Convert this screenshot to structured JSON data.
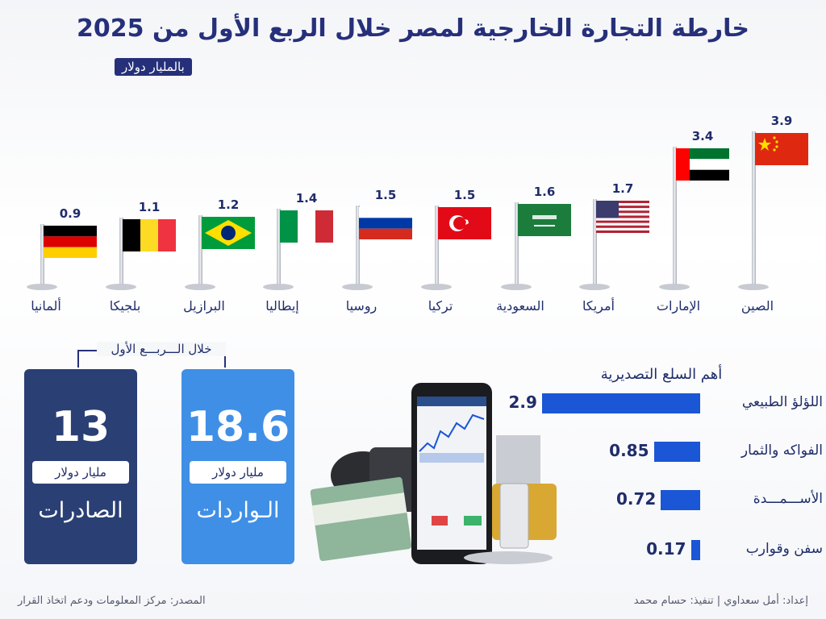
{
  "header": {
    "title": "خارطة التجارة الخارجية لمصر خلال الربع الأول من 2025",
    "unit": "بالمليار دولار"
  },
  "chart_data": [
    {
      "type": "bar",
      "title": "",
      "categories": [
        "الصين",
        "الإمارات",
        "أمريكا",
        "السعودية",
        "تركيا",
        "روسيا",
        "إيطاليا",
        "البرازيل",
        "بلجيكا",
        "ألمانيا"
      ],
      "values": [
        3.9,
        3.4,
        1.7,
        1.6,
        1.5,
        1.5,
        1.4,
        1.2,
        1.1,
        0.9
      ],
      "flags": [
        "china",
        "uae",
        "usa",
        "saudi",
        "turkey",
        "russia",
        "italy",
        "brazil",
        "belgium",
        "germany"
      ]
    },
    {
      "type": "bar",
      "title": "أهم السلع التصديرية",
      "categories": [
        "اللؤلؤ الطبيعي",
        "الفواكه والثمار",
        "الأســـمـــدة",
        "سفن وقوارب"
      ],
      "values": [
        2.9,
        0.85,
        0.72,
        0.17
      ],
      "value_labels": [
        "2.9",
        "0.85",
        "0.72",
        "0.17"
      ],
      "color": "#1a56d6"
    }
  ],
  "period_label": "خلال الـــربـــع الأول",
  "imports": {
    "value": "18.6",
    "unit": "مليار دولار",
    "label": "الـواردات",
    "color": "#3f8fe6"
  },
  "exports": {
    "value": "13",
    "unit": "مليار دولار",
    "label": "الصادرات",
    "color": "#2a3f74"
  },
  "footer": {
    "credits": "إعداد: أمل سعداوي | تنفيذ: حسام محمد",
    "source": "المصدر: مركز المعلومات ودعم اتخاذ القرار"
  }
}
